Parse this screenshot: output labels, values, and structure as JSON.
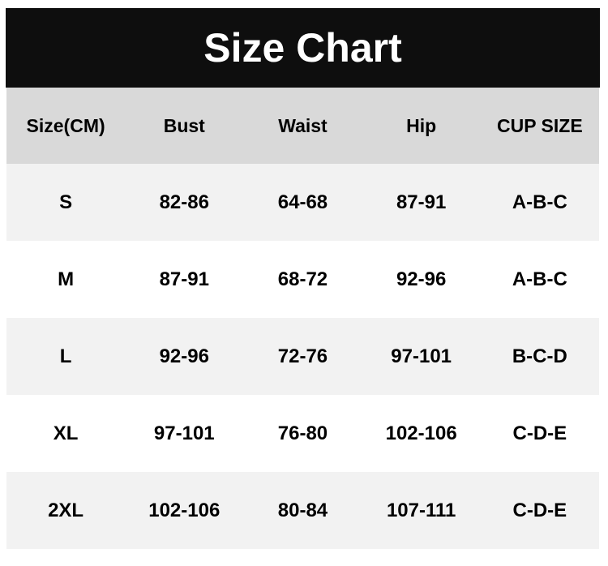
{
  "title": "Size Chart",
  "headers": [
    "Size(CM)",
    "Bust",
    "Waist",
    "Hip",
    "CUP SIZE"
  ],
  "rows": [
    [
      "S",
      "82-86",
      "64-68",
      "87-91",
      "A-B-C"
    ],
    [
      "M",
      "87-91",
      "68-72",
      "92-96",
      "A-B-C"
    ],
    [
      "L",
      "92-96",
      "72-76",
      "97-101",
      "B-C-D"
    ],
    [
      "XL",
      "97-101",
      "76-80",
      "102-106",
      "C-D-E"
    ],
    [
      "2XL",
      "102-106",
      "80-84",
      "107-111",
      "C-D-E"
    ]
  ]
}
